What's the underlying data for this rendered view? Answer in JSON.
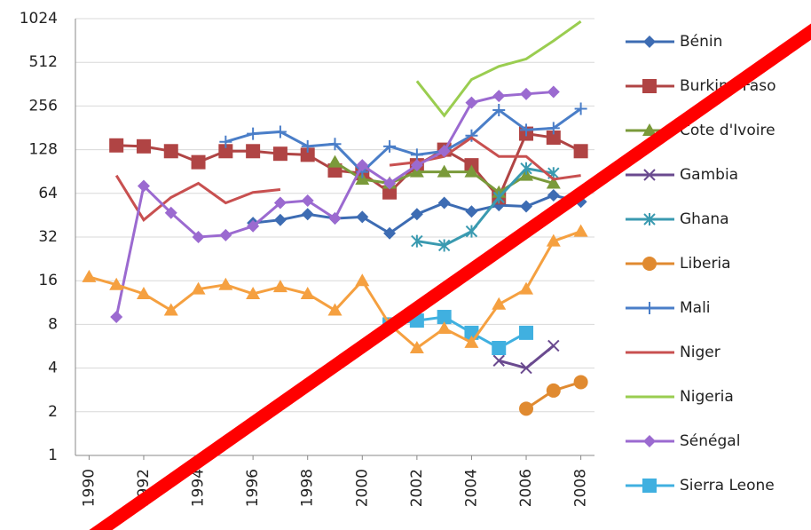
{
  "chart_data": {
    "type": "line",
    "log_scale": true,
    "log_base": 2,
    "grid": true,
    "legend": "right",
    "x": [
      1990,
      1991,
      1992,
      1993,
      1994,
      1995,
      1996,
      1997,
      1998,
      1999,
      2000,
      2001,
      2002,
      2003,
      2004,
      2005,
      2006,
      2007,
      2008
    ],
    "xlim": [
      1989.5,
      2008.5
    ],
    "xticks": [
      1990,
      1992,
      1994,
      1996,
      1998,
      2000,
      2002,
      2004,
      2006,
      2008
    ],
    "ylim": [
      1,
      1024
    ],
    "yticks": [
      1,
      2,
      4,
      8,
      16,
      32,
      64,
      128,
      256,
      512,
      1024
    ],
    "series": [
      {
        "name": "Bénin",
        "color": "#3d6cb3",
        "marker": "diamond",
        "values": [
          null,
          null,
          null,
          null,
          null,
          null,
          40,
          42,
          46,
          43,
          44,
          34,
          46,
          55,
          48,
          53,
          52,
          62,
          56
        ]
      },
      {
        "name": "Burkina Faso",
        "color": "#b04444",
        "marker": "square",
        "values": [
          null,
          137,
          135,
          125,
          105,
          125,
          125,
          120,
          118,
          92,
          88,
          65,
          100,
          128,
          100,
          60,
          165,
          155,
          125
        ]
      },
      {
        "name": "Cote d'Ivoire",
        "color": "#7a9a3a",
        "marker": "triangle",
        "values": [
          null,
          null,
          null,
          null,
          null,
          null,
          null,
          null,
          null,
          105,
          80,
          75,
          90,
          90,
          90,
          65,
          85,
          75,
          null
        ]
      },
      {
        "name": "Gambia",
        "color": "#6a4a8f",
        "marker": "x",
        "values": [
          null,
          null,
          null,
          null,
          null,
          null,
          null,
          null,
          null,
          null,
          null,
          null,
          null,
          null,
          null,
          4.5,
          4,
          5.7,
          null
        ]
      },
      {
        "name": "Ghana",
        "color": "#3a9ab0",
        "marker": "asterisk",
        "values": [
          null,
          null,
          null,
          null,
          null,
          null,
          null,
          null,
          null,
          null,
          null,
          null,
          30,
          28,
          35,
          60,
          95,
          88,
          null
        ]
      },
      {
        "name": "Liberia",
        "color": "#e08a30",
        "marker": "circle",
        "values": [
          null,
          null,
          null,
          null,
          null,
          null,
          null,
          null,
          null,
          null,
          null,
          null,
          null,
          null,
          null,
          null,
          2.1,
          2.8,
          3.2
        ]
      },
      {
        "name": "Mali",
        "color": "#4a7ec8",
        "marker": "plus",
        "values": [
          null,
          null,
          null,
          null,
          null,
          145,
          165,
          170,
          135,
          140,
          90,
          135,
          118,
          125,
          160,
          240,
          175,
          180,
          245
        ]
      },
      {
        "name": "Niger",
        "color": "#c85050",
        "marker": "none",
        "values": [
          null,
          85,
          42,
          60,
          75,
          55,
          65,
          68,
          null,
          null,
          null,
          100,
          105,
          115,
          155,
          115,
          115,
          80,
          85
        ]
      },
      {
        "name": "Nigeria",
        "color": "#9acd50",
        "marker": "none",
        "values": [
          null,
          null,
          null,
          null,
          null,
          null,
          null,
          null,
          null,
          null,
          null,
          null,
          380,
          220,
          390,
          480,
          540,
          720,
          980
        ]
      },
      {
        "name": "Sénégal",
        "color": "#9b6ad0",
        "marker": "diamond",
        "values": [
          null,
          9,
          72,
          47,
          32,
          33,
          38,
          55,
          57,
          43,
          100,
          75,
          100,
          125,
          270,
          300,
          310,
          320,
          null
        ]
      },
      {
        "name": "Sierra Leone",
        "color": "#40b0e0",
        "marker": "square",
        "values": [
          null,
          null,
          null,
          null,
          null,
          null,
          null,
          null,
          null,
          null,
          null,
          8,
          8.5,
          9,
          7,
          5.5,
          7,
          null,
          null
        ]
      },
      {
        "color": "#f5a040",
        "marker": "triangle",
        "values": [
          17,
          15,
          13,
          10,
          14,
          15,
          13,
          14.5,
          13,
          10,
          16,
          8,
          5.5,
          7.5,
          6,
          11,
          14,
          30,
          35
        ]
      }
    ]
  }
}
